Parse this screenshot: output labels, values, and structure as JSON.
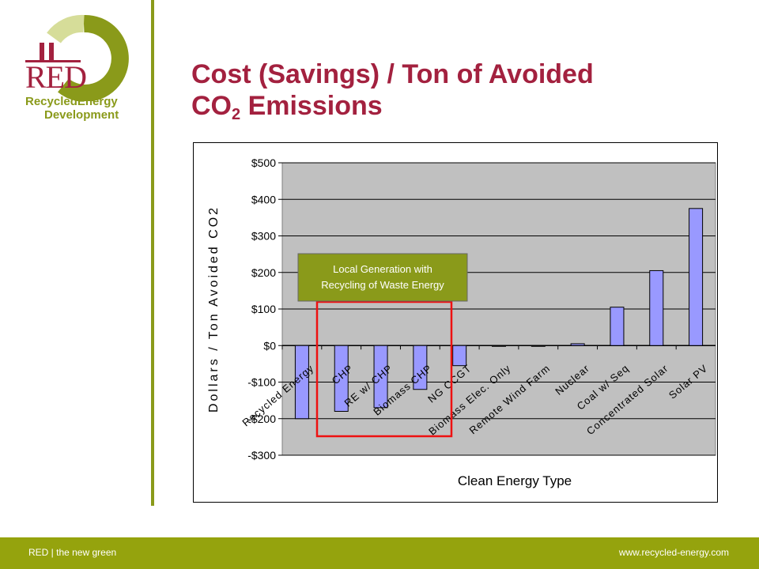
{
  "logo": {
    "mark": "RED",
    "line1": "RecycledEnergy",
    "line2": "Development"
  },
  "title": {
    "line1": "Cost (Savings) / Ton of Avoided",
    "line2_main": "CO",
    "line2_sub": "2",
    "line2_rest": " Emissions"
  },
  "footer": {
    "left": "RED | the new green",
    "right": "www.recycled-energy.com"
  },
  "colors": {
    "brand_red": "#a3213f",
    "brand_green": "#95a30d",
    "bar_fill": "#9999ff",
    "plot_bg": "#c0c0c0",
    "annotation_box": "#8a9a1a",
    "highlight_border": "#ee1111"
  },
  "chart_data": {
    "type": "bar",
    "categories": [
      "Recycled Energy",
      "CHP",
      "RE w/ CHP",
      "Biomass CHP",
      "NG CCGT",
      "Biomass Elec. Only",
      "Remote Wind Farm",
      "Nuclear",
      "Coal w/ Seq",
      "Concentrated Solar",
      "Solar PV"
    ],
    "values": [
      -200,
      -180,
      -170,
      -120,
      -55,
      -2,
      -2,
      5,
      105,
      205,
      375
    ],
    "ylim": [
      -300,
      500
    ],
    "yticks": [
      500,
      400,
      300,
      200,
      100,
      0,
      -100,
      -200,
      -300
    ],
    "ytick_labels": [
      "$500",
      "$400",
      "$300",
      "$200",
      "$100",
      "$0",
      "-$100",
      "-$200",
      "-$300"
    ],
    "xlabel": "Clean Energy Type",
    "ylabel": "Dollars / Ton Avoided CO2",
    "grid": true,
    "annotation": {
      "line1": "Local Generation with",
      "line2": "Recycling of Waste Energy"
    }
  }
}
